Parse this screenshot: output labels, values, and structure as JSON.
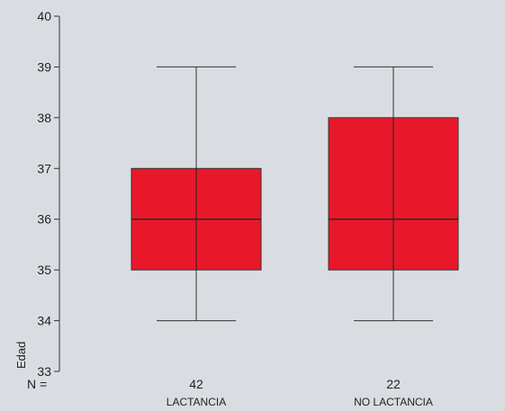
{
  "chart_data": {
    "type": "boxplot",
    "ylabel": "Edad",
    "ylim": [
      33,
      40
    ],
    "yticks": [
      33,
      34,
      35,
      36,
      37,
      38,
      39,
      40
    ],
    "n_prefix": "N =",
    "box_color": "#e8182a",
    "categories": [
      "LACTANCIA",
      "NO LACTANCIA"
    ],
    "n_values": [
      "42",
      "22"
    ],
    "boxes": [
      {
        "name": "LACTANCIA",
        "n": 42,
        "min": 34,
        "q1": 35,
        "median": 36,
        "q3": 37,
        "max": 39
      },
      {
        "name": "NO LACTANCIA",
        "n": 22,
        "min": 34,
        "q1": 35,
        "median": 36,
        "q3": 38,
        "max": 39
      }
    ]
  }
}
